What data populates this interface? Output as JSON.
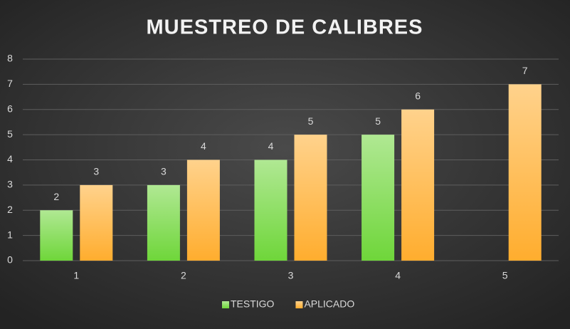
{
  "chart_data": {
    "type": "bar",
    "title": "MUESTREO DE CALIBRES",
    "categories": [
      "1",
      "2",
      "3",
      "4",
      "5"
    ],
    "series": [
      {
        "name": "TESTIGO",
        "color": "#6fd63a",
        "values": [
          2,
          3,
          4,
          5,
          null
        ]
      },
      {
        "name": "APLICADO",
        "color": "#ffad2e",
        "values": [
          3,
          4,
          5,
          6,
          7
        ]
      }
    ],
    "ylim": [
      0,
      8
    ],
    "yticks": [
      0,
      1,
      2,
      3,
      4,
      5,
      6,
      7,
      8
    ],
    "grid": true,
    "legend": "bottom"
  }
}
